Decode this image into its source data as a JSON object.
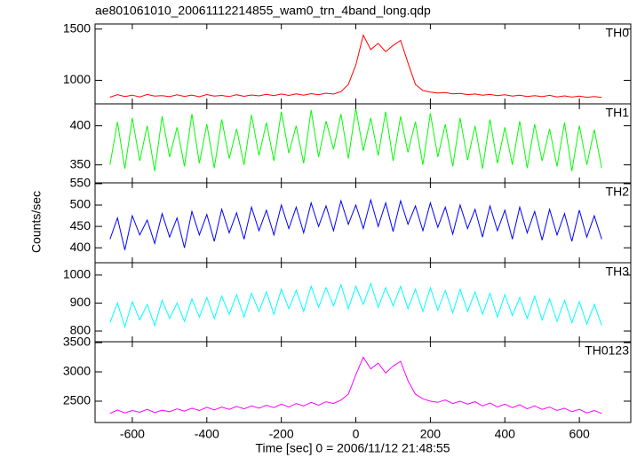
{
  "chart_data": {
    "type": "line",
    "title": "ae801061010_20061112214855_wam0_trn_4band_long.qdp",
    "xlabel": "Time [sec] 0 = 2006/11/12 21:48:55",
    "ylabel": "Counts/sec",
    "xlim": [
      -700,
      738
    ],
    "xticks": [
      -600,
      -400,
      -200,
      0,
      200,
      400,
      600
    ],
    "x": [
      -660,
      -640,
      -620,
      -600,
      -580,
      -560,
      -540,
      -520,
      -500,
      -480,
      -460,
      -440,
      -420,
      -400,
      -380,
      -360,
      -340,
      -320,
      -300,
      -280,
      -260,
      -240,
      -220,
      -200,
      -180,
      -160,
      -140,
      -120,
      -100,
      -80,
      -60,
      -40,
      -20,
      0,
      20,
      40,
      60,
      80,
      100,
      120,
      140,
      160,
      180,
      200,
      220,
      240,
      260,
      280,
      300,
      320,
      340,
      360,
      380,
      400,
      420,
      440,
      460,
      480,
      500,
      520,
      540,
      560,
      580,
      600,
      620,
      640,
      660
    ],
    "panels": [
      {
        "name": "TH0",
        "color": "#ff0000",
        "ylim": [
          770,
          1550
        ],
        "yticks": [
          1000,
          1500
        ],
        "values": [
          835,
          860,
          842,
          855,
          838,
          862,
          845,
          850,
          840,
          858,
          843,
          856,
          839,
          861,
          846,
          852,
          841,
          859,
          844,
          857,
          848,
          863,
          850,
          866,
          852,
          868,
          855,
          870,
          858,
          874,
          865,
          890,
          960,
          1150,
          1440,
          1300,
          1360,
          1280,
          1340,
          1390,
          1170,
          960,
          900,
          885,
          875,
          880,
          868,
          872,
          860,
          866,
          855,
          862,
          850,
          858,
          846,
          855,
          842,
          850,
          840,
          853,
          838,
          848,
          836,
          845,
          834,
          842,
          832
        ]
      },
      {
        "name": "TH1",
        "color": "#00ff00",
        "ylim": [
          327,
          428
        ],
        "yticks": [
          350,
          400
        ],
        "values": [
          350,
          405,
          345,
          410,
          355,
          400,
          342,
          412,
          360,
          398,
          348,
          415,
          352,
          402,
          346,
          408,
          358,
          396,
          350,
          414,
          362,
          404,
          355,
          418,
          365,
          400,
          352,
          420,
          360,
          406,
          370,
          415,
          358,
          422,
          368,
          410,
          362,
          418,
          355,
          412,
          366,
          405,
          350,
          416,
          360,
          402,
          348,
          410,
          356,
          400,
          345,
          408,
          352,
          398,
          350,
          406,
          346,
          402,
          355,
          396,
          348,
          404,
          342,
          400,
          350,
          395,
          346
        ]
      },
      {
        "name": "TH2",
        "color": "#0000ff",
        "ylim": [
          365,
          552
        ],
        "yticks": [
          400,
          450,
          500,
          550
        ],
        "values": [
          420,
          470,
          395,
          475,
          430,
          465,
          410,
          480,
          425,
          470,
          400,
          485,
          430,
          478,
          415,
          490,
          435,
          482,
          420,
          495,
          440,
          488,
          430,
          500,
          445,
          495,
          435,
          505,
          450,
          498,
          440,
          510,
          455,
          500,
          445,
          512,
          450,
          505,
          438,
          510,
          455,
          498,
          440,
          505,
          448,
          495,
          432,
          500,
          445,
          490,
          425,
          498,
          440,
          488,
          420,
          495,
          435,
          485,
          418,
          490,
          430,
          480,
          415,
          488,
          425,
          475,
          420
        ]
      },
      {
        "name": "TH3",
        "color": "#00ffff",
        "ylim": [
          762,
          1044
        ],
        "yticks": [
          800,
          900,
          1000
        ],
        "values": [
          830,
          900,
          815,
          905,
          840,
          895,
          820,
          910,
          845,
          900,
          835,
          915,
          850,
          920,
          845,
          925,
          860,
          930,
          850,
          935,
          870,
          940,
          860,
          950,
          880,
          945,
          870,
          960,
          885,
          955,
          890,
          965,
          880,
          960,
          895,
          970,
          885,
          955,
          890,
          960,
          880,
          950,
          870,
          955,
          875,
          945,
          865,
          950,
          870,
          940,
          860,
          935,
          850,
          930,
          855,
          920,
          845,
          925,
          840,
          915,
          835,
          910,
          830,
          905,
          825,
          895,
          820
        ]
      },
      {
        "name": "TH0123",
        "color": "#ff00ff",
        "ylim": [
          2136,
          3515
        ],
        "yticks": [
          2500,
          3000,
          3500
        ],
        "values": [
          2290,
          2350,
          2300,
          2340,
          2310,
          2360,
          2305,
          2345,
          2320,
          2370,
          2330,
          2380,
          2340,
          2395,
          2350,
          2400,
          2360,
          2410,
          2370,
          2420,
          2380,
          2430,
          2390,
          2450,
          2400,
          2460,
          2420,
          2480,
          2430,
          2490,
          2460,
          2520,
          2620,
          2950,
          3250,
          3050,
          3150,
          2980,
          3100,
          3180,
          2850,
          2620,
          2540,
          2500,
          2480,
          2520,
          2460,
          2500,
          2450,
          2490,
          2420,
          2470,
          2400,
          2450,
          2390,
          2440,
          2370,
          2420,
          2360,
          2400,
          2340,
          2380,
          2320,
          2360,
          2300,
          2340,
          2290
        ]
      }
    ]
  }
}
